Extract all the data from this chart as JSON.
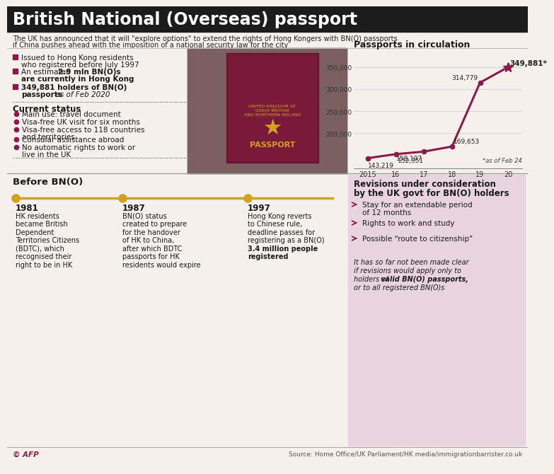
{
  "title": "British National (Overseas) passport",
  "bg_color": "#f5f0eb",
  "dark_color": "#1a1a1a",
  "maroon": "#8b1a4a",
  "gold": "#d4a020",
  "chart_title": "Passports in circulation",
  "chart_x": [
    2015,
    2016,
    2017,
    2018,
    2019,
    2020
  ],
  "chart_y": [
    143219,
    152351,
    158107,
    169653,
    314779,
    349881
  ],
  "chart_color": "#8b1a4a",
  "as_of_note": "*as of Feb 24",
  "footer_left": "© AFP",
  "footer_right": "Source: Home Office/UK Parliament/HK media/immigrationbarrister.co.uk",
  "rev_bg": "#e8d8e0"
}
